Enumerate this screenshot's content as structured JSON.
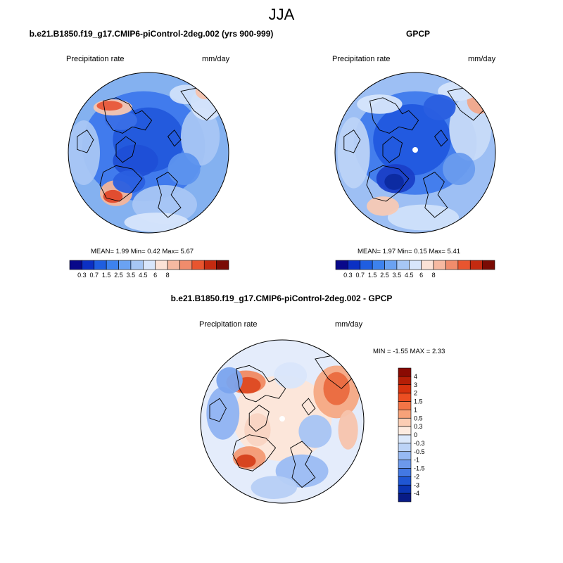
{
  "figure_title": "JJA",
  "chart_data": [
    {
      "type": "heatmap",
      "projection": "north polar stereographic",
      "title": "b.e21.B1850.f19_g17.CMIP6-piControl-2deg.002 (yrs 900-999)",
      "left_label": "Precipitation rate",
      "units": "mm/day",
      "stats": {
        "mean": "1.99",
        "min": "0.42",
        "max": "5.67"
      },
      "stats_text": "MEAN=   1.99  Min=   0.42  Max=   5.67",
      "colorbar": {
        "orientation": "horizontal",
        "levels": [
          "0.3",
          "0.7",
          "1.5",
          "2.5",
          "3.5",
          "4.5",
          "6",
          "8"
        ],
        "colors": [
          "#08088a",
          "#0b30c4",
          "#1f5ee0",
          "#3d82ee",
          "#6aa2f2",
          "#a6c7f5",
          "#d8e6fb",
          "#fbe2d6",
          "#f6b9a1",
          "#f08c6c",
          "#e8552f",
          "#c42a10",
          "#7a0b04"
        ]
      }
    },
    {
      "type": "heatmap",
      "projection": "north polar stereographic",
      "title": "GPCP",
      "left_label": "Precipitation rate",
      "units": "mm/day",
      "stats": {
        "mean": "1.97",
        "min": "0.15",
        "max": "5.41"
      },
      "stats_text": "MEAN=   1.97  Min=   0.15  Max=   5.41",
      "colorbar": {
        "orientation": "horizontal",
        "levels": [
          "0.3",
          "0.7",
          "1.5",
          "2.5",
          "3.5",
          "4.5",
          "6",
          "8"
        ],
        "colors": [
          "#08088a",
          "#0b30c4",
          "#1f5ee0",
          "#3d82ee",
          "#6aa2f2",
          "#a6c7f5",
          "#d8e6fb",
          "#fbe2d6",
          "#f6b9a1",
          "#f08c6c",
          "#e8552f",
          "#c42a10",
          "#7a0b04"
        ]
      }
    },
    {
      "type": "heatmap",
      "projection": "north polar stereographic",
      "title": "b.e21.B1850.f19_g17.CMIP6-piControl-2deg.002 - GPCP",
      "left_label": "Precipitation rate",
      "units": "mm/day",
      "stats": {
        "min": "-1.55",
        "max": "2.33"
      },
      "stats_text": "MIN =  -1.55 MAX =   2.33",
      "colorbar": {
        "orientation": "vertical",
        "levels": [
          "4",
          "3",
          "2",
          "1.5",
          "1",
          "0.5",
          "0.3",
          "0",
          "-0.3",
          "-0.5",
          "-1",
          "-1.5",
          "-2",
          "-3",
          "-4"
        ],
        "colors": [
          "#8a0a02",
          "#b51e06",
          "#d7320e",
          "#ec4e22",
          "#f37446",
          "#f7a279",
          "#fbcdb4",
          "#fdebe0",
          "#dbe8fb",
          "#bcd3f7",
          "#96b9f3",
          "#6c99ec",
          "#4378e3",
          "#1f56d3",
          "#0b35b3",
          "#081b86"
        ]
      }
    }
  ]
}
